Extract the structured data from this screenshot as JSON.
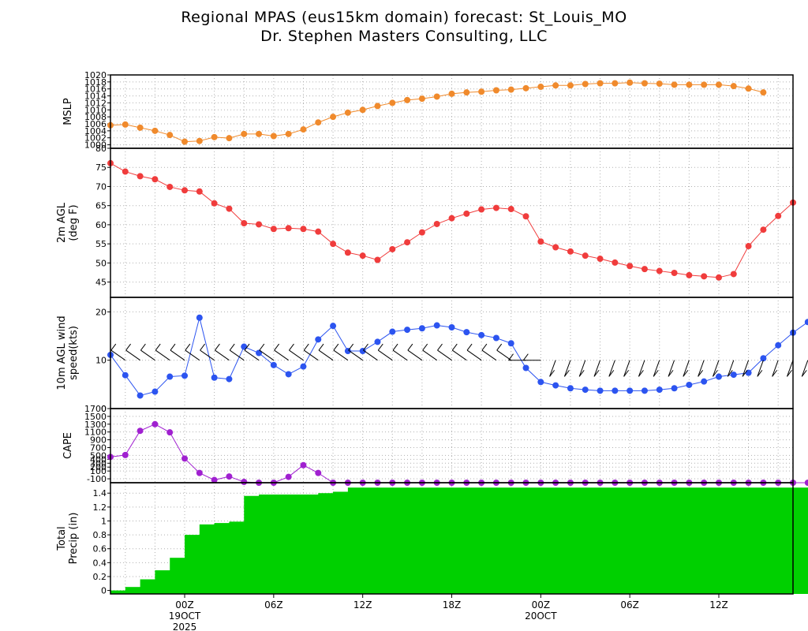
{
  "title": {
    "line1": "Regional MPAS (eus15km domain) forecast: St_Louis_MO",
    "line2": "Dr. Stephen Masters Consulting, LLC"
  },
  "colors": {
    "mslp": "#f08a2c",
    "temp": "#f03c3c",
    "wind": "#2c54f0",
    "cape": "#a020d0",
    "precip": "#00d000",
    "grid": "#b0b0b0"
  },
  "chart_data": {
    "type": "meteogram",
    "time_axis": {
      "first_hour": -5,
      "last_hour": 41,
      "ticks": [
        {
          "hour": 0,
          "label": "00Z",
          "sub": [
            "19OCT",
            "2025"
          ]
        },
        {
          "hour": 6,
          "label": "06Z",
          "sub": []
        },
        {
          "hour": 12,
          "label": "12Z",
          "sub": []
        },
        {
          "hour": 18,
          "label": "18Z",
          "sub": []
        },
        {
          "hour": 24,
          "label": "00Z",
          "sub": [
            "20OCT"
          ]
        },
        {
          "hour": 30,
          "label": "06Z",
          "sub": []
        },
        {
          "hour": 36,
          "label": "12Z",
          "sub": []
        }
      ]
    },
    "panels": [
      {
        "id": "mslp",
        "type": "line",
        "ylabel": [
          "MSLP"
        ],
        "ylim": [
          999,
          1020
        ],
        "grid_y": [
          1000,
          1002,
          1004,
          1006,
          1008,
          1010,
          1012,
          1014,
          1016,
          1018,
          1020
        ],
        "tick_labels": [
          "1000",
          "1002",
          "1004",
          "1006",
          "1008",
          "1010",
          "1012",
          "1014",
          "1016",
          "1018",
          "1020"
        ],
        "values": [
          1005.6,
          1005.8,
          1004.9,
          1004.0,
          1002.8,
          1000.9,
          1001.1,
          1002.2,
          1001.9,
          1003.1,
          1003.1,
          1002.5,
          1003.1,
          1004.4,
          1006.4,
          1008.0,
          1009.2,
          1010.0,
          1011.1,
          1012.0,
          1012.8,
          1013.2,
          1013.8,
          1014.6,
          1015.0,
          1015.2,
          1015.6,
          1015.8,
          1016.2,
          1016.6,
          1017.0,
          1017.0,
          1017.4,
          1017.6,
          1017.6,
          1017.8,
          1017.6,
          1017.5,
          1017.2,
          1017.2,
          1017.2,
          1017.2,
          1016.8,
          1016.1,
          1015.0
        ]
      },
      {
        "id": "temp",
        "type": "line",
        "ylabel": [
          "2m AGL",
          "(deg F)"
        ],
        "ylim": [
          41,
          80
        ],
        "grid_y": [
          45,
          50,
          55,
          60,
          65,
          70,
          75,
          80
        ],
        "tick_labels": [
          "45",
          "50",
          "55",
          "60",
          "65",
          "70",
          "75",
          "80"
        ],
        "values": [
          76.1,
          73.9,
          72.7,
          71.9,
          69.9,
          69.0,
          68.7,
          65.6,
          64.2,
          60.4,
          60.1,
          58.9,
          59.1,
          58.9,
          58.2,
          55.0,
          52.7,
          51.9,
          50.8,
          53.6,
          55.4,
          58.0,
          60.2,
          61.7,
          62.9,
          64.0,
          64.4,
          64.1,
          62.2,
          55.6,
          54.1,
          53.0,
          51.9,
          51.1,
          50.1,
          49.2,
          48.4,
          47.9,
          47.4,
          46.8,
          46.5,
          46.2,
          47.1,
          54.4,
          58.7,
          62.3,
          65.8
        ]
      },
      {
        "id": "wind",
        "type": "line",
        "ylabel": [
          "10m AGL wind",
          "speed(kts)"
        ],
        "ylim": [
          0,
          23
        ],
        "grid_y": [
          10,
          20
        ],
        "tick_labels": [
          "0",
          "10",
          "20"
        ],
        "values": [
          11.1,
          6.9,
          2.7,
          3.5,
          6.6,
          6.8,
          18.8,
          6.4,
          6.1,
          12.8,
          11.5,
          9.0,
          7.1,
          8.7,
          14.3,
          17.1,
          11.9,
          11.9,
          13.8,
          15.9,
          16.3,
          16.6,
          17.2,
          16.8,
          15.8,
          15.2,
          14.6,
          13.5,
          8.4,
          5.5,
          4.8,
          4.2,
          3.9,
          3.7,
          3.7,
          3.7,
          3.7,
          3.9,
          4.2,
          4.9,
          5.6,
          6.6,
          7.0,
          7.4,
          10.4,
          13.1,
          15.7,
          17.9
        ]
      },
      {
        "id": "cape",
        "type": "line",
        "ylabel": [
          "CAPE"
        ],
        "ylim": [
          -200,
          1700
        ],
        "grid_y": [
          -100,
          100,
          200,
          300,
          400,
          500,
          700,
          900,
          1100,
          1300,
          1500,
          1700
        ],
        "tick_labels": [
          "-100",
          "100",
          "200",
          "300",
          "400",
          "500",
          "700",
          "900",
          "1100",
          "1300",
          "1500",
          "1700"
        ],
        "values": [
          460,
          510,
          1130,
          1300,
          1090,
          420,
          50,
          -130,
          -40,
          -180,
          -200,
          -200,
          -50,
          250,
          50,
          -200,
          -200,
          -200,
          -200,
          -200,
          -200,
          -200,
          -200,
          -200,
          -200,
          -200,
          -200,
          -200,
          -200,
          -200,
          -200,
          -200,
          -200,
          -200,
          -200,
          -200,
          -200,
          -200,
          -200,
          -200,
          -200,
          -200,
          -200,
          -200,
          -200,
          -200,
          -200,
          -200
        ]
      },
      {
        "id": "precip",
        "type": "bar",
        "ylabel": [
          "Total",
          "Precip (in)"
        ],
        "ylim": [
          -0.05,
          1.55
        ],
        "grid_y": [
          0,
          0.2,
          0.4,
          0.6,
          0.8,
          1.0,
          1.2,
          1.4
        ],
        "tick_labels": [
          "0",
          "0.2",
          "0.4",
          "0.6",
          "0.8",
          "1",
          "1.2",
          "1.4"
        ],
        "values": [
          0.0,
          0.05,
          0.16,
          0.29,
          0.47,
          0.8,
          0.95,
          0.97,
          0.99,
          1.36,
          1.38,
          1.38,
          1.38,
          1.38,
          1.4,
          1.42,
          1.48,
          1.48,
          1.48,
          1.48,
          1.48,
          1.48,
          1.48,
          1.48,
          1.48,
          1.48,
          1.48,
          1.48,
          1.48,
          1.48,
          1.48,
          1.48,
          1.48,
          1.48,
          1.48,
          1.48,
          1.48,
          1.48,
          1.48,
          1.48,
          1.48,
          1.48,
          1.48,
          1.48,
          1.48,
          1.48,
          1.48
        ]
      }
    ]
  }
}
